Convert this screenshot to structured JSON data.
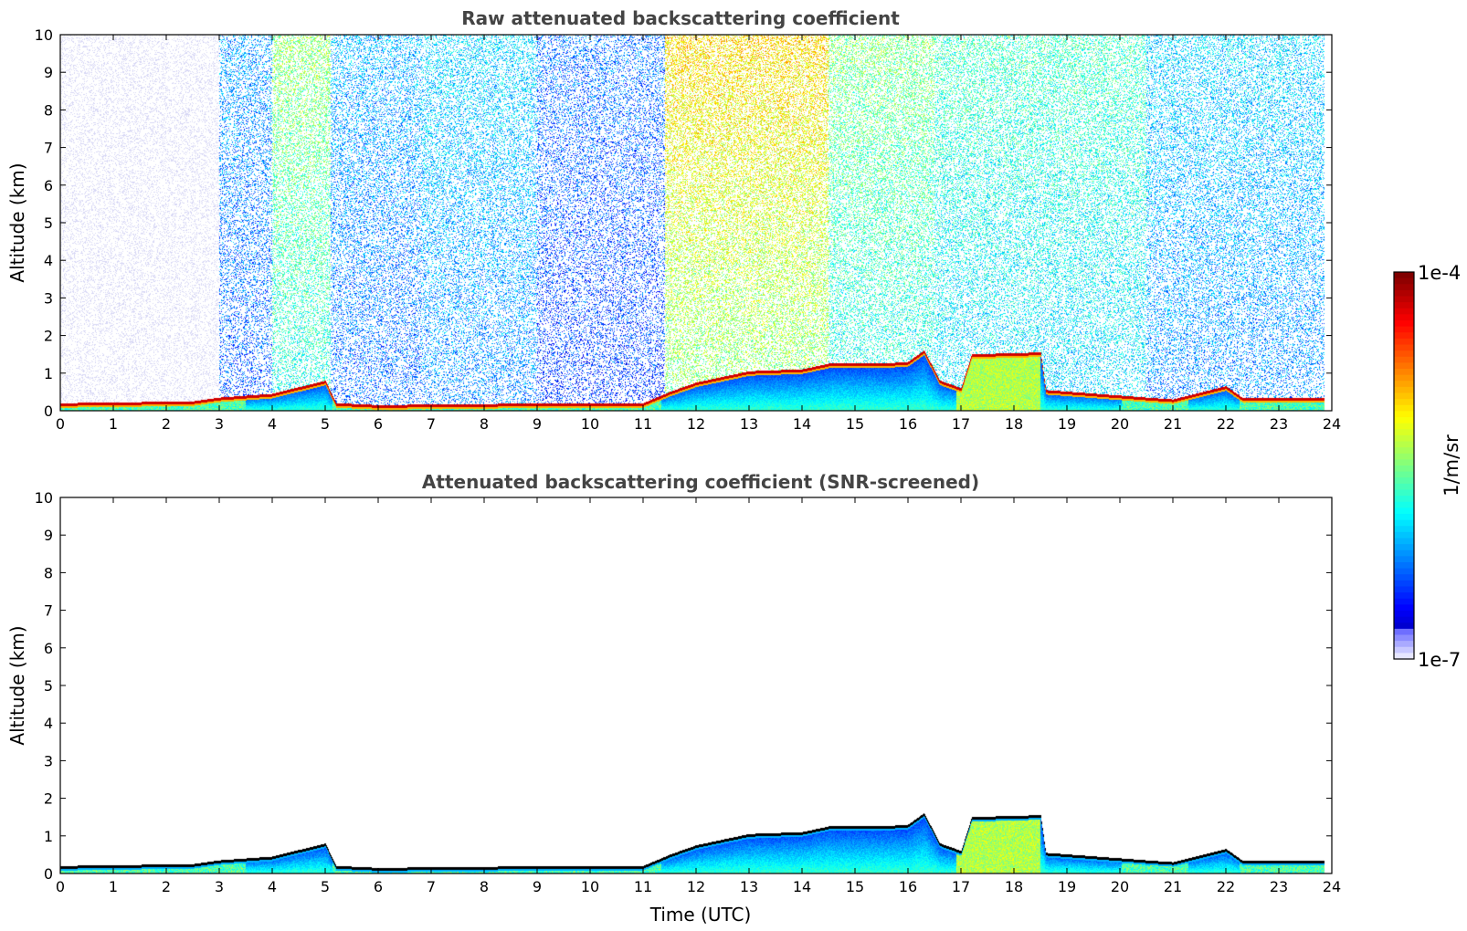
{
  "chart_data": [
    {
      "type": "heatmap",
      "title": "Raw attenuated backscattering coefficient",
      "xlabel": "",
      "ylabel": "Altitude (km)",
      "xlim": [
        0,
        24
      ],
      "ylim": [
        0,
        10
      ],
      "x_ticks": [
        0,
        1,
        2,
        3,
        4,
        5,
        6,
        7,
        8,
        9,
        10,
        11,
        12,
        13,
        14,
        15,
        16,
        17,
        18,
        19,
        20,
        21,
        22,
        23,
        24
      ],
      "y_ticks": [
        0,
        1,
        2,
        3,
        4,
        5,
        6,
        7,
        8,
        9,
        10
      ],
      "background_noise": [
        {
          "t0": 0.0,
          "t1": 0.5,
          "level": 0.05
        },
        {
          "t0": 0.5,
          "t1": 3.0,
          "level": 0.09
        },
        {
          "t0": 3.0,
          "t1": 4.0,
          "level": 0.28
        },
        {
          "t0": 4.0,
          "t1": 5.1,
          "level": 0.52
        },
        {
          "t0": 5.1,
          "t1": 6.8,
          "level": 0.3
        },
        {
          "t0": 6.8,
          "t1": 9.0,
          "level": 0.34
        },
        {
          "t0": 9.0,
          "t1": 11.4,
          "level": 0.24
        },
        {
          "t0": 11.4,
          "t1": 14.5,
          "level": 0.66
        },
        {
          "t0": 14.5,
          "t1": 16.5,
          "level": 0.5
        },
        {
          "t0": 16.5,
          "t1": 20.5,
          "level": 0.44
        },
        {
          "t0": 20.5,
          "t1": 23.9,
          "level": 0.34
        }
      ],
      "boundary_layer_top_km": [
        {
          "t": 0.0,
          "h": 0.2
        },
        {
          "t": 2.5,
          "h": 0.25
        },
        {
          "t": 3.0,
          "h": 0.35
        },
        {
          "t": 4.0,
          "h": 0.45
        },
        {
          "t": 5.0,
          "h": 0.8
        },
        {
          "t": 5.2,
          "h": 0.2
        },
        {
          "t": 6.0,
          "h": 0.15
        },
        {
          "t": 9.5,
          "h": 0.2
        },
        {
          "t": 11.0,
          "h": 0.2
        },
        {
          "t": 11.5,
          "h": 0.5
        },
        {
          "t": 12.0,
          "h": 0.75
        },
        {
          "t": 13.0,
          "h": 1.05
        },
        {
          "t": 14.0,
          "h": 1.1
        },
        {
          "t": 14.5,
          "h": 1.25
        },
        {
          "t": 15.5,
          "h": 1.25
        },
        {
          "t": 16.0,
          "h": 1.3
        },
        {
          "t": 16.3,
          "h": 1.6
        },
        {
          "t": 16.6,
          "h": 0.8
        },
        {
          "t": 17.0,
          "h": 0.6
        },
        {
          "t": 17.2,
          "h": 1.5
        },
        {
          "t": 18.5,
          "h": 1.55
        },
        {
          "t": 18.6,
          "h": 0.55
        },
        {
          "t": 20.5,
          "h": 0.35
        },
        {
          "t": 21.0,
          "h": 0.3
        },
        {
          "t": 22.0,
          "h": 0.65
        },
        {
          "t": 22.3,
          "h": 0.35
        },
        {
          "t": 23.8,
          "h": 0.35
        }
      ]
    },
    {
      "type": "heatmap",
      "title": "Attenuated backscattering coefficient (SNR-screened)",
      "xlabel": "Time (UTC)",
      "ylabel": "Altitude (km)",
      "xlim": [
        0,
        24
      ],
      "ylim": [
        0,
        10
      ],
      "x_ticks": [
        0,
        1,
        2,
        3,
        4,
        5,
        6,
        7,
        8,
        9,
        10,
        11,
        12,
        13,
        14,
        15,
        16,
        17,
        18,
        19,
        20,
        21,
        22,
        23,
        24
      ],
      "y_ticks": [
        0,
        1,
        2,
        3,
        4,
        5,
        6,
        7,
        8,
        9,
        10
      ],
      "background_noise": "screened (none above boundary layer)"
    }
  ],
  "colorbar": {
    "label": "1/m/sr",
    "min_label": "1e-7",
    "max_label": "1e-4",
    "scale": "log",
    "colormap": "jet"
  }
}
